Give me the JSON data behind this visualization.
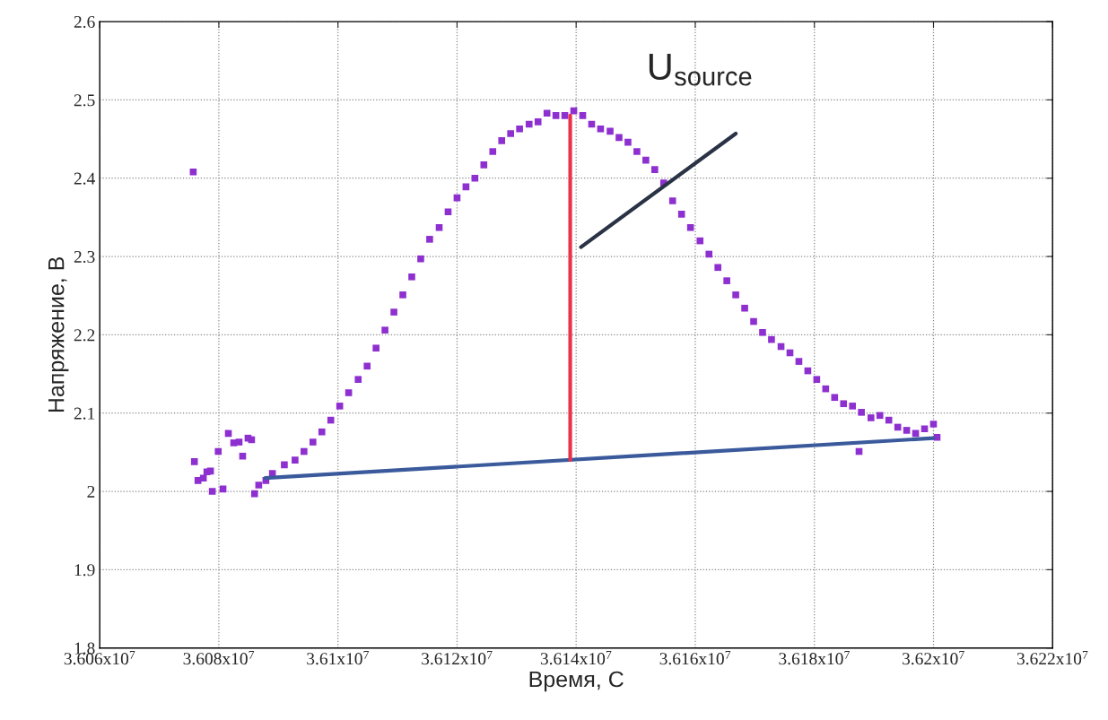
{
  "chart_data": {
    "type": "scatter",
    "xlabel": "Время, С",
    "ylabel": "Напряжение, В",
    "xlim": [
      36060000,
      36220000
    ],
    "xticks": [
      {
        "value": 36060000,
        "label": "3.606x10$^{7}$"
      },
      {
        "value": 36080000,
        "label": "3.608x10$^{7}$"
      },
      {
        "value": 36100000,
        "label": "3.61x10$^{7}$"
      },
      {
        "value": 36120000,
        "label": "3.612x10$^{7}$"
      },
      {
        "value": 36140000,
        "label": "3.614x10$^{7}$"
      },
      {
        "value": 36160000,
        "label": "3.616x10$^{7}$"
      },
      {
        "value": 36180000,
        "label": "3.618x10$^{7}$"
      },
      {
        "value": 36200000,
        "label": "3.62x10$^{7}$"
      },
      {
        "value": 36220000,
        "label": "3.622x10$^{7}$"
      }
    ],
    "ylim": [
      1.8,
      2.6
    ],
    "yticks": [
      1.8,
      1.9,
      2,
      2.1,
      2.2,
      2.3,
      2.4,
      2.5,
      2.6
    ],
    "grid": true,
    "legend": false,
    "annotations": [
      "U$_{source}$"
    ],
    "series": [
      {
        "marker": "square",
        "color": "#8e2fd0",
        "x": [
          36075700,
          36075900,
          36076500,
          36077400,
          36078000,
          36078600,
          36078900,
          36079900,
          36080700,
          36081600,
          36082500,
          36083400,
          36084000,
          36084900,
          36085500,
          36086000,
          36086700,
          36087900,
          36089000,
          36091000,
          36092800,
          36094300,
          36095800,
          36097300,
          36098800,
          36100300,
          36101800,
          36103400,
          36104900,
          36106400,
          36107900,
          36109400,
          36110900,
          36112400,
          36113900,
          36115400,
          36117000,
          36118500,
          36120000,
          36121500,
          36123000,
          36124500,
          36126000,
          36127500,
          36129000,
          36130500,
          36132100,
          36133600,
          36135100,
          36136600,
          36138100,
          36139600,
          36141100,
          36142600,
          36144100,
          36145700,
          36147200,
          36148700,
          36150200,
          36151700,
          36153200,
          36154700,
          36156200,
          36157700,
          36159200,
          36160800,
          36162300,
          36163800,
          36165300,
          36166800,
          36168300,
          36169800,
          36171300,
          36172800,
          36174400,
          36175900,
          36177400,
          36178900,
          36180400,
          36181900,
          36183400,
          36184900,
          36186400,
          36187500,
          36187900,
          36189500,
          36191000,
          36192500,
          36194000,
          36195500,
          36197000,
          36198500,
          36200000,
          36200600
        ],
        "values": [
          2.408,
          2.038,
          2.014,
          2.017,
          2.025,
          2.026,
          2.0,
          2.051,
          2.003,
          2.074,
          2.062,
          2.063,
          2.045,
          2.068,
          2.066,
          1.997,
          2.008,
          2.014,
          2.023,
          2.034,
          2.04,
          2.051,
          2.063,
          2.076,
          2.091,
          2.109,
          2.126,
          2.143,
          2.16,
          2.183,
          2.206,
          2.229,
          2.251,
          2.274,
          2.297,
          2.322,
          2.337,
          2.357,
          2.375,
          2.389,
          2.4,
          2.417,
          2.434,
          2.448,
          2.457,
          2.463,
          2.469,
          2.472,
          2.483,
          2.48,
          2.48,
          2.486,
          2.48,
          2.469,
          2.463,
          2.46,
          2.452,
          2.446,
          2.434,
          2.423,
          2.411,
          2.394,
          2.371,
          2.354,
          2.337,
          2.32,
          2.303,
          2.286,
          2.269,
          2.251,
          2.234,
          2.217,
          2.203,
          2.194,
          2.185,
          2.177,
          2.166,
          2.154,
          2.143,
          2.131,
          2.12,
          2.112,
          2.109,
          2.051,
          2.101,
          2.094,
          2.097,
          2.091,
          2.082,
          2.078,
          2.074,
          2.08,
          2.086,
          2.069
        ]
      },
      {
        "type": "line",
        "color": "#3a5a9c",
        "x": [
          36087800,
          36200000
        ],
        "values": [
          2.017,
          2.068
        ]
      },
      {
        "type": "line",
        "color": "#e8334a",
        "x": [
          36139000,
          36139000
        ],
        "values": [
          2.04,
          2.48
        ]
      },
      {
        "type": "line",
        "color": "#2a3345",
        "x": [
          36140800,
          36166800
        ],
        "values": [
          2.312,
          2.457
        ]
      }
    ]
  }
}
